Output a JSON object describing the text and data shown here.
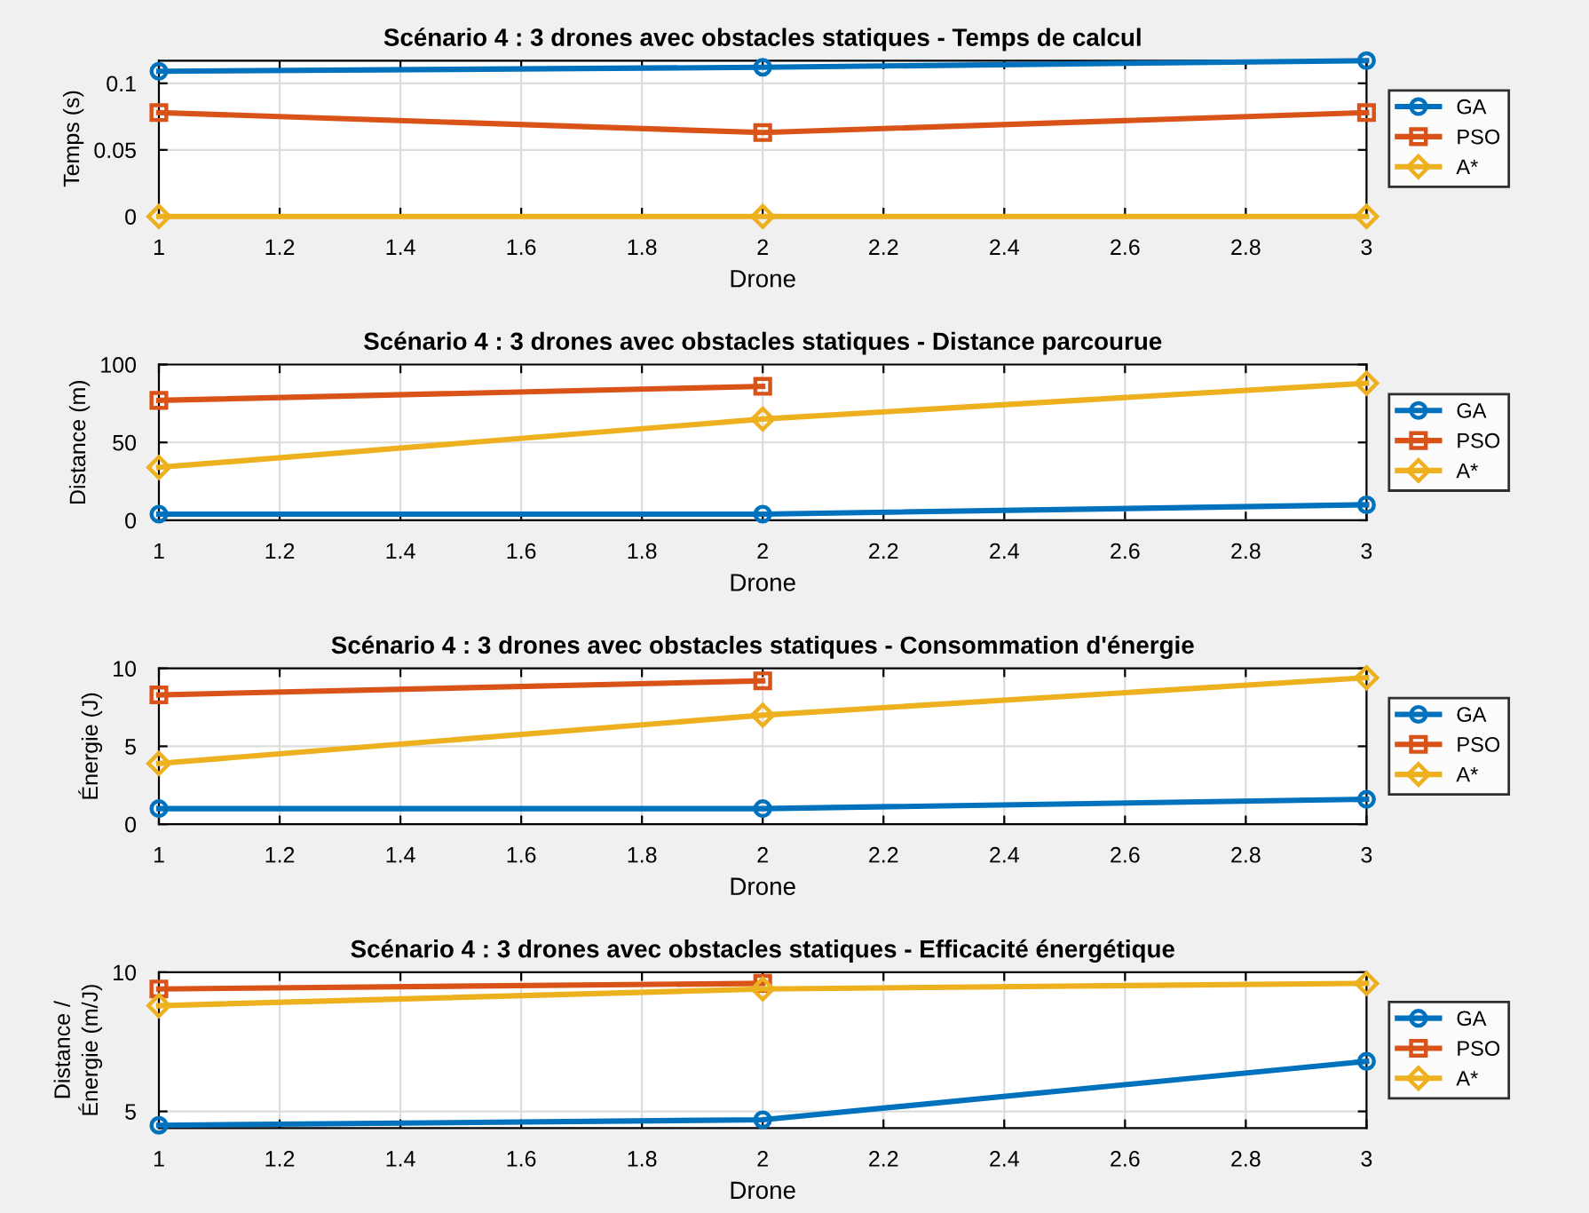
{
  "chart_data": [
    {
      "type": "line",
      "title": "Scénario 4 : 3 drones avec obstacles statiques - Temps de calcul",
      "xlabel": "Drone",
      "ylabel": "Temps (s)",
      "x": [
        1,
        2,
        3
      ],
      "xlim": [
        1,
        3
      ],
      "xticks": [
        1,
        {
          "value": 1.2,
          "label": "1.2"
        },
        {
          "value": 1.4,
          "label": "1.4"
        },
        {
          "value": 1.6,
          "label": "1.6"
        },
        {
          "value": 1.8,
          "label": "1.8"
        },
        2,
        {
          "value": 2.2,
          "label": "2.2"
        },
        {
          "value": 2.4,
          "label": "2.4"
        },
        {
          "value": 2.6,
          "label": "2.6"
        },
        {
          "value": 2.8,
          "label": "2.8"
        },
        3
      ],
      "ylim": [
        0,
        0.117
      ],
      "yticks": [
        0,
        0.05,
        0.1
      ],
      "grid": true,
      "legend": "right",
      "series": [
        {
          "name": "GA",
          "color": "#0072bd",
          "marker": "circle",
          "values": [
            0.109,
            0.112,
            0.117
          ]
        },
        {
          "name": "PSO",
          "color": "#d95319",
          "marker": "square",
          "values": [
            0.078,
            0.063,
            0.078
          ]
        },
        {
          "name": "A*",
          "color": "#edb120",
          "marker": "diamond",
          "values": [
            0,
            0,
            0
          ]
        }
      ]
    },
    {
      "type": "line",
      "title": "Scénario 4 : 3 drones avec obstacles statiques - Distance parcourue",
      "xlabel": "Drone",
      "ylabel": "Distance (m)",
      "x": [
        1,
        2,
        3
      ],
      "xlim": [
        1,
        3
      ],
      "xticks": [
        1,
        {
          "value": 1.2,
          "label": "1.2"
        },
        {
          "value": 1.4,
          "label": "1.4"
        },
        {
          "value": 1.6,
          "label": "1.6"
        },
        {
          "value": 1.8,
          "label": "1.8"
        },
        2,
        {
          "value": 2.2,
          "label": "2.2"
        },
        {
          "value": 2.4,
          "label": "2.4"
        },
        {
          "value": 2.6,
          "label": "2.6"
        },
        {
          "value": 2.8,
          "label": "2.8"
        },
        3
      ],
      "ylim": [
        0,
        100
      ],
      "yticks": [
        0,
        50,
        100
      ],
      "grid": true,
      "legend": "right",
      "series": [
        {
          "name": "GA",
          "color": "#0072bd",
          "marker": "circle",
          "values": [
            4,
            4,
            10
          ]
        },
        {
          "name": "PSO",
          "color": "#d95319",
          "marker": "square",
          "values": [
            77,
            86,
            null
          ]
        },
        {
          "name": "A*",
          "color": "#edb120",
          "marker": "diamond",
          "values": [
            34,
            65,
            88
          ]
        }
      ]
    },
    {
      "type": "line",
      "title": "Scénario 4 : 3 drones avec obstacles statiques - Consommation d'énergie",
      "xlabel": "Drone",
      "ylabel": "Énergie (J)",
      "x": [
        1,
        2,
        3
      ],
      "xlim": [
        1,
        3
      ],
      "xticks": [
        1,
        {
          "value": 1.2,
          "label": "1.2"
        },
        {
          "value": 1.4,
          "label": "1.4"
        },
        {
          "value": 1.6,
          "label": "1.6"
        },
        {
          "value": 1.8,
          "label": "1.8"
        },
        2,
        {
          "value": 2.2,
          "label": "2.2"
        },
        {
          "value": 2.4,
          "label": "2.4"
        },
        {
          "value": 2.6,
          "label": "2.6"
        },
        {
          "value": 2.8,
          "label": "2.8"
        },
        3
      ],
      "ylim": [
        0,
        10
      ],
      "yticks": [
        0,
        5,
        10
      ],
      "grid": true,
      "legend": "right",
      "series": [
        {
          "name": "GA",
          "color": "#0072bd",
          "marker": "circle",
          "values": [
            1.0,
            1.0,
            1.6
          ]
        },
        {
          "name": "PSO",
          "color": "#d95319",
          "marker": "square",
          "values": [
            8.3,
            9.2,
            null
          ]
        },
        {
          "name": "A*",
          "color": "#edb120",
          "marker": "diamond",
          "values": [
            3.9,
            7.0,
            9.4
          ]
        }
      ]
    },
    {
      "type": "line",
      "title": "Scénario 4 : 3 drones avec obstacles statiques - Efficacité énergétique",
      "xlabel": "Drone",
      "ylabel": "Distance / Énergie (m/J)",
      "x": [
        1,
        2,
        3
      ],
      "xlim": [
        1,
        3
      ],
      "xticks": [
        1,
        {
          "value": 1.2,
          "label": "1.2"
        },
        {
          "value": 1.4,
          "label": "1.4"
        },
        {
          "value": 1.6,
          "label": "1.6"
        },
        {
          "value": 1.8,
          "label": "1.8"
        },
        2,
        {
          "value": 2.2,
          "label": "2.2"
        },
        {
          "value": 2.4,
          "label": "2.4"
        },
        {
          "value": 2.6,
          "label": "2.6"
        },
        {
          "value": 2.8,
          "label": "2.8"
        },
        3
      ],
      "ylim": [
        4.4,
        10
      ],
      "yticks": [
        5,
        10
      ],
      "grid": true,
      "legend": "right",
      "series": [
        {
          "name": "GA",
          "color": "#0072bd",
          "marker": "circle",
          "values": [
            4.5,
            4.7,
            6.8
          ]
        },
        {
          "name": "PSO",
          "color": "#d95319",
          "marker": "square",
          "values": [
            9.4,
            9.6,
            null
          ]
        },
        {
          "name": "A*",
          "color": "#edb120",
          "marker": "diamond",
          "values": [
            8.8,
            9.4,
            9.6
          ]
        }
      ]
    }
  ]
}
